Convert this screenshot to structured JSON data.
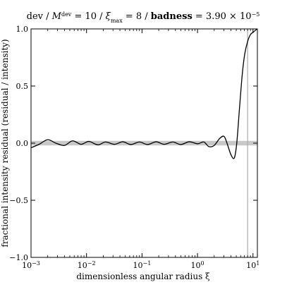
{
  "chart_data": {
    "type": "line",
    "title": {
      "prefix": "dev / ",
      "M": "M",
      "M_sup": "dev",
      "mid1": " = 10 / ",
      "xi": "ξ",
      "xi_sub": "max",
      "mid2": " = 8 / ",
      "badness": "badness",
      "mid3": " = 3.90 × 10",
      "exp": "−5"
    },
    "xlabel": "dimensionless angular radius ξ",
    "ylabel": "fractional intensity residual (residual / intensity)",
    "x_scale": "log",
    "xlim": [
      0.001,
      12
    ],
    "ylim": [
      -1.0,
      1.0
    ],
    "x_ticks": [
      {
        "value": 0.001,
        "base": "10",
        "exp": "−3"
      },
      {
        "value": 0.01,
        "base": "10",
        "exp": "−2"
      },
      {
        "value": 0.1,
        "base": "10",
        "exp": "−1"
      },
      {
        "value": 1,
        "base": "10",
        "exp": "0"
      },
      {
        "value": 10,
        "base": "10",
        "exp": "1"
      }
    ],
    "y_ticks": [
      {
        "value": -1.0,
        "label": "−1.0"
      },
      {
        "value": -0.5,
        "label": "−0.5"
      },
      {
        "value": 0.0,
        "label": "0.0"
      },
      {
        "value": 0.5,
        "label": "0.5"
      },
      {
        "value": 1.0,
        "label": "1.0"
      }
    ],
    "xi_max_line": 8,
    "zero_band": [
      -0.02,
      0.02
    ],
    "series": [
      {
        "color": "#000000",
        "x": [
          0.001,
          0.0014,
          0.002,
          0.0028,
          0.004,
          0.0056,
          0.008,
          0.011,
          0.016,
          0.022,
          0.032,
          0.045,
          0.063,
          0.09,
          0.126,
          0.18,
          0.25,
          0.36,
          0.5,
          0.71,
          1.0,
          1.3,
          1.6,
          2.0,
          2.5,
          3.0,
          3.4,
          4.0,
          4.6,
          5.1,
          5.7,
          6.4,
          7.1,
          8.0,
          9.0,
          10.0,
          11.2,
          12.0
        ],
        "y": [
          -0.04,
          -0.01,
          0.03,
          0.0,
          -0.02,
          0.02,
          -0.01,
          0.015,
          -0.015,
          0.01,
          -0.01,
          0.012,
          -0.012,
          0.01,
          -0.012,
          0.012,
          -0.01,
          0.01,
          -0.012,
          0.012,
          -0.005,
          0.01,
          -0.03,
          -0.02,
          0.04,
          0.06,
          0.0,
          -0.1,
          -0.13,
          0.0,
          0.3,
          0.6,
          0.78,
          0.89,
          0.95,
          0.97,
          0.99,
          1.0
        ]
      }
    ]
  }
}
